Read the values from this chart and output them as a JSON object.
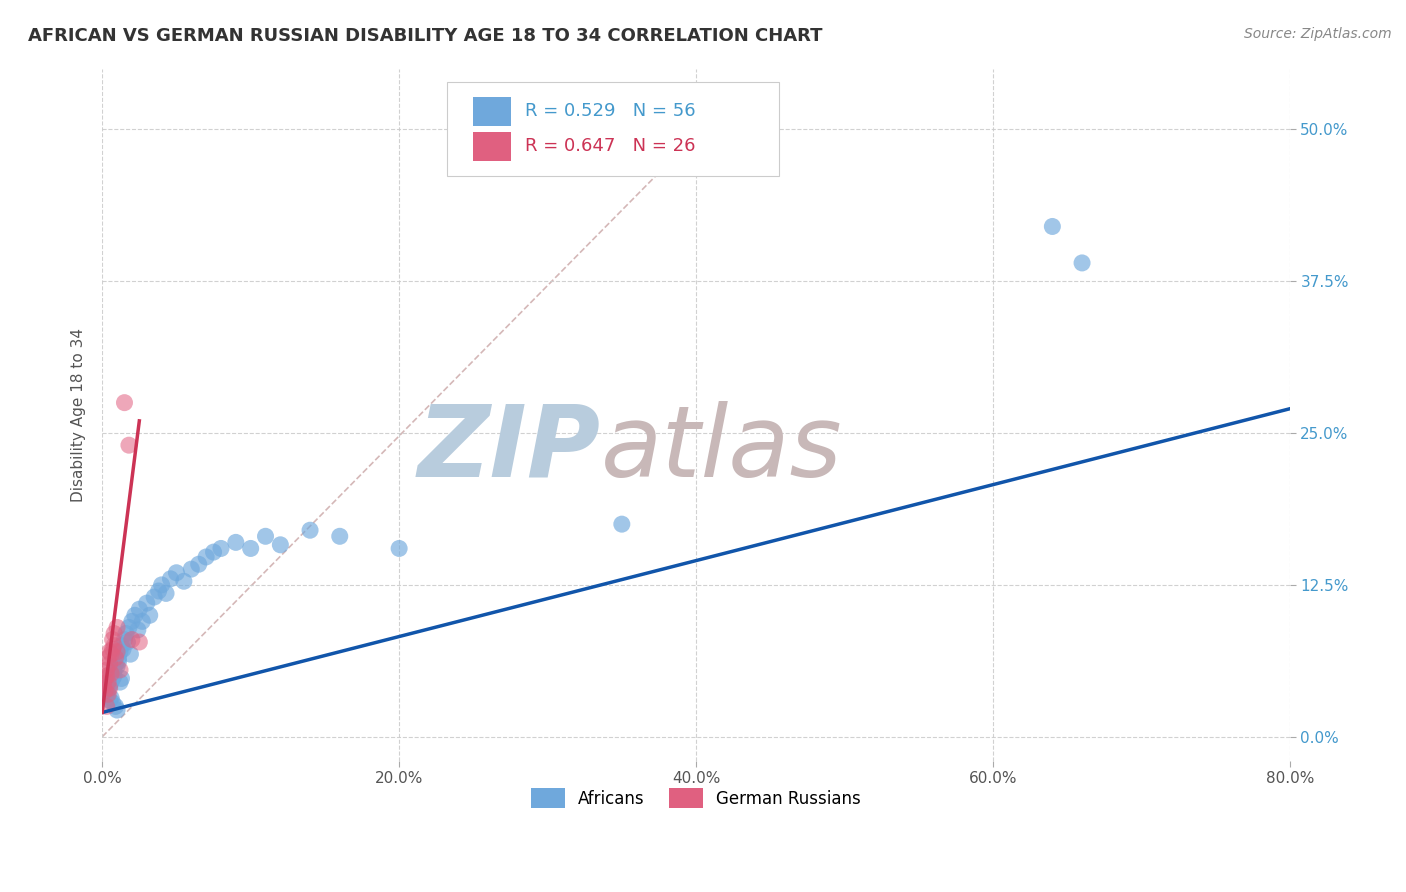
{
  "title": "AFRICAN VS GERMAN RUSSIAN DISABILITY AGE 18 TO 34 CORRELATION CHART",
  "source": "Source: ZipAtlas.com",
  "ylabel": "Disability Age 18 to 34",
  "xlim": [
    0.0,
    0.8
  ],
  "ylim": [
    -0.02,
    0.55
  ],
  "xticks": [
    0.0,
    0.2,
    0.4,
    0.6,
    0.8
  ],
  "xtick_labels": [
    "0.0%",
    "20.0%",
    "40.0%",
    "60.0%",
    "80.0%"
  ],
  "yticks": [
    0.0,
    0.125,
    0.25,
    0.375,
    0.5
  ],
  "ytick_labels": [
    "0.0%",
    "12.5%",
    "25.0%",
    "37.5%",
    "50.0%"
  ],
  "african_R": 0.529,
  "african_N": 56,
  "german_R": 0.647,
  "german_N": 26,
  "african_color": "#6fa8dc",
  "german_color": "#e06080",
  "african_line_color": "#1155aa",
  "german_line_color": "#cc3355",
  "diagonal_color": "#d0b0b0",
  "watermark_zip": "ZIP",
  "watermark_atlas": "atlas",
  "watermark_color_zip": "#b8ccdd",
  "watermark_color_atlas": "#c8b8b8",
  "legend_african_label": "Africans",
  "legend_german_label": "German Russians",
  "african_x": [
    0.002,
    0.003,
    0.004,
    0.005,
    0.005,
    0.006,
    0.006,
    0.007,
    0.007,
    0.008,
    0.008,
    0.009,
    0.009,
    0.01,
    0.01,
    0.011,
    0.011,
    0.012,
    0.012,
    0.013,
    0.013,
    0.014,
    0.015,
    0.016,
    0.017,
    0.018,
    0.019,
    0.02,
    0.022,
    0.024,
    0.025,
    0.027,
    0.03,
    0.032,
    0.035,
    0.038,
    0.04,
    0.043,
    0.046,
    0.05,
    0.055,
    0.06,
    0.065,
    0.07,
    0.075,
    0.08,
    0.09,
    0.1,
    0.11,
    0.12,
    0.14,
    0.16,
    0.2,
    0.35,
    0.64,
    0.66
  ],
  "african_y": [
    0.04,
    0.035,
    0.038,
    0.042,
    0.03,
    0.045,
    0.032,
    0.048,
    0.028,
    0.05,
    0.055,
    0.025,
    0.06,
    0.058,
    0.022,
    0.062,
    0.065,
    0.07,
    0.045,
    0.075,
    0.048,
    0.072,
    0.08,
    0.085,
    0.078,
    0.09,
    0.068,
    0.095,
    0.1,
    0.088,
    0.105,
    0.095,
    0.11,
    0.1,
    0.115,
    0.12,
    0.125,
    0.118,
    0.13,
    0.135,
    0.128,
    0.138,
    0.142,
    0.148,
    0.152,
    0.155,
    0.16,
    0.155,
    0.165,
    0.158,
    0.17,
    0.165,
    0.155,
    0.175,
    0.42,
    0.39
  ],
  "german_x": [
    0.001,
    0.002,
    0.002,
    0.003,
    0.003,
    0.003,
    0.004,
    0.004,
    0.004,
    0.005,
    0.005,
    0.005,
    0.006,
    0.006,
    0.007,
    0.007,
    0.008,
    0.008,
    0.009,
    0.01,
    0.01,
    0.012,
    0.015,
    0.018,
    0.02,
    0.025
  ],
  "german_y": [
    0.042,
    0.038,
    0.048,
    0.025,
    0.055,
    0.05,
    0.035,
    0.065,
    0.045,
    0.07,
    0.04,
    0.06,
    0.068,
    0.052,
    0.072,
    0.08,
    0.075,
    0.085,
    0.065,
    0.07,
    0.09,
    0.055,
    0.275,
    0.24,
    0.08,
    0.078
  ],
  "african_line_x": [
    0.0,
    0.8
  ],
  "african_line_y": [
    0.02,
    0.27
  ],
  "german_line_x": [
    0.0,
    0.025
  ],
  "german_line_y": [
    0.02,
    0.26
  ]
}
